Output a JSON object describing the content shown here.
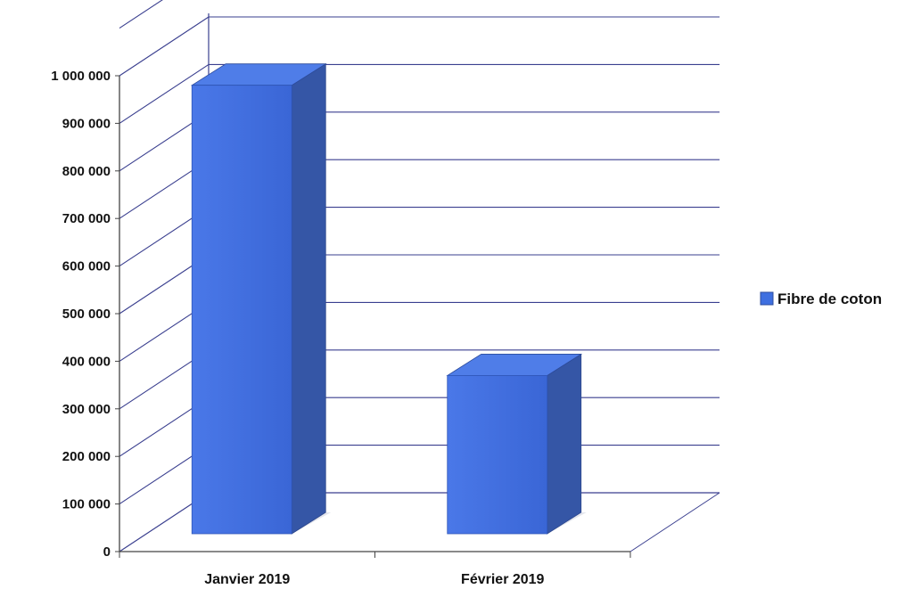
{
  "chart_data": {
    "type": "bar",
    "three_d": true,
    "categories": [
      "Janvier 2019",
      "Février 2019"
    ],
    "series": [
      {
        "name": "Fibre de coton",
        "values": [
          980000,
          370000
        ]
      }
    ],
    "y_ticks": [
      "0",
      "100 000",
      "200 000",
      "300 000",
      "400 000",
      "500 000",
      "600 000",
      "700 000",
      "800 000",
      "900 000",
      "1 000 000"
    ],
    "ylim": [
      0,
      1000000
    ],
    "grid": true,
    "legend_position": "right",
    "colors": {
      "bar_front": "#3e6fe0",
      "bar_side": "#3556a6",
      "bar_top": "#4f7de8",
      "grid": "#3a3f8f",
      "axis": "#444444"
    }
  }
}
